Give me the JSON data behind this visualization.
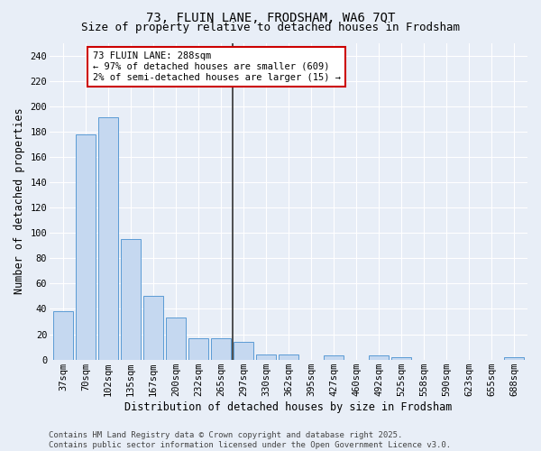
{
  "title": "73, FLUIN LANE, FRODSHAM, WA6 7QT",
  "subtitle": "Size of property relative to detached houses in Frodsham",
  "xlabel": "Distribution of detached houses by size in Frodsham",
  "ylabel": "Number of detached properties",
  "categories": [
    "37sqm",
    "70sqm",
    "102sqm",
    "135sqm",
    "167sqm",
    "200sqm",
    "232sqm",
    "265sqm",
    "297sqm",
    "330sqm",
    "362sqm",
    "395sqm",
    "427sqm",
    "460sqm",
    "492sqm",
    "525sqm",
    "558sqm",
    "590sqm",
    "623sqm",
    "655sqm",
    "688sqm"
  ],
  "values": [
    38,
    178,
    191,
    95,
    50,
    33,
    17,
    17,
    14,
    4,
    4,
    0,
    3,
    0,
    3,
    2,
    0,
    0,
    0,
    0,
    2
  ],
  "bar_color": "#c5d8f0",
  "bar_edge_color": "#5b9bd5",
  "vline_color": "#333333",
  "annotation_text": "73 FLUIN LANE: 288sqm\n← 97% of detached houses are smaller (609)\n2% of semi-detached houses are larger (15) →",
  "annotation_box_color": "#ffffff",
  "annotation_box_edge_color": "#cc0000",
  "ylim": [
    0,
    250
  ],
  "yticks": [
    0,
    20,
    40,
    60,
    80,
    100,
    120,
    140,
    160,
    180,
    200,
    220,
    240
  ],
  "bg_color": "#e8eef7",
  "plot_bg_color": "#e8eef7",
  "footer": "Contains HM Land Registry data © Crown copyright and database right 2025.\nContains public sector information licensed under the Open Government Licence v3.0.",
  "title_fontsize": 10,
  "subtitle_fontsize": 9,
  "xlabel_fontsize": 8.5,
  "ylabel_fontsize": 8.5,
  "tick_fontsize": 7.5,
  "footer_fontsize": 6.5,
  "annotation_fontsize": 7.5
}
